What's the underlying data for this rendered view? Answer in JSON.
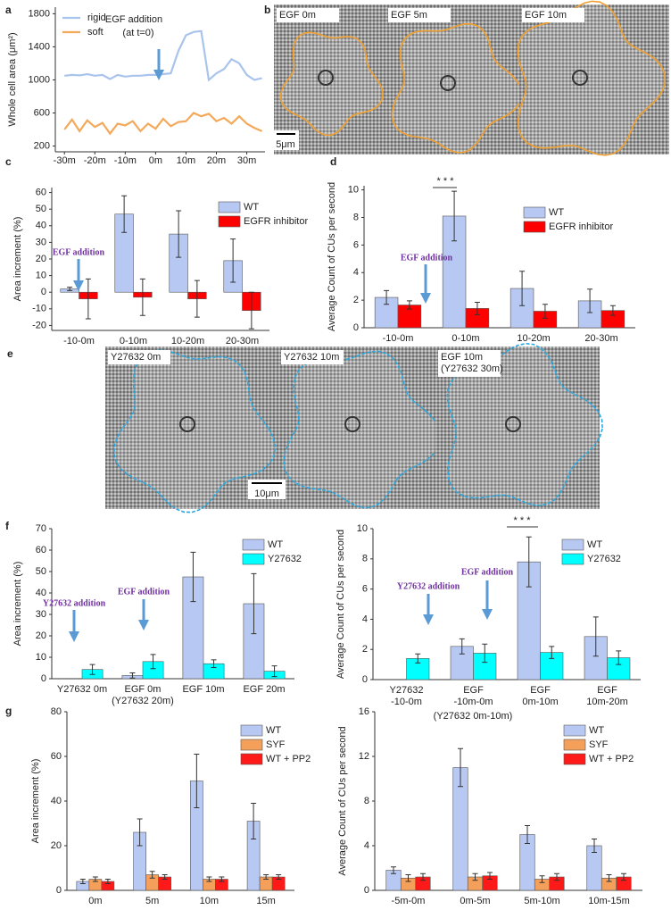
{
  "images": [
    {
      "panel": "b",
      "frames": [
        "EGF 0m",
        "EGF 5m",
        "EGF 10m"
      ],
      "scale_bar": "5μm"
    },
    {
      "panel": "e",
      "frames": [
        "Y27632 0m",
        "Y27632 10m",
        [
          "EGF 10m",
          "(Y27632 30m)"
        ]
      ],
      "scale_bar": "10μm"
    }
  ],
  "chart_data": [
    {
      "type": "line",
      "panel": "a",
      "ylabel": "Whole cell area (μm²)",
      "annotations": [
        "EGF addition",
        "(at t=0)"
      ],
      "x": [
        -30,
        -27.5,
        -25,
        -22.5,
        -20,
        -17.5,
        -15,
        -12.5,
        -10,
        -7.5,
        -5,
        -2.5,
        0,
        2.5,
        5,
        7.5,
        10,
        12.5,
        15,
        17.5,
        20,
        22.5,
        25,
        27.5,
        30,
        32.5,
        35
      ],
      "series": [
        {
          "name": "rigid",
          "color": "#a9c4ec",
          "values": [
            1050,
            1060,
            1055,
            1070,
            1050,
            1060,
            1010,
            1060,
            1040,
            1050,
            1050,
            1060,
            1060,
            1070,
            1080,
            1350,
            1540,
            1580,
            1590,
            1000,
            1080,
            1130,
            1250,
            1200,
            1060,
            1000,
            1020
          ]
        },
        {
          "name": "soft",
          "color": "#f4a95a",
          "values": [
            400,
            520,
            380,
            510,
            430,
            480,
            350,
            470,
            450,
            500,
            380,
            470,
            410,
            530,
            440,
            490,
            500,
            600,
            560,
            590,
            500,
            540,
            470,
            560,
            470,
            420,
            380
          ]
        }
      ],
      "xlim": [
        -33,
        36
      ],
      "xticks": [
        {
          "value": -30,
          "label": "-30m"
        },
        {
          "value": -20,
          "label": "-20m"
        },
        {
          "value": -10,
          "label": "-10m"
        },
        {
          "value": 0,
          "label": "0m"
        },
        {
          "value": 10,
          "label": "10m"
        },
        {
          "value": 20,
          "label": "20m"
        },
        {
          "value": 30,
          "label": "30m"
        }
      ],
      "ylim": [
        130,
        1880
      ],
      "yticks": [
        200,
        600,
        1000,
        1400,
        1800
      ],
      "legend": "upper left"
    },
    {
      "type": "bar",
      "panel": "c",
      "ylabel": "Area increment (%)",
      "annotations": [
        "EGF addition"
      ],
      "categories": [
        "-10-0m",
        "0-10m",
        "10-20m",
        "20-30m"
      ],
      "series": [
        {
          "name": "WT",
          "color": "#b7c9f2",
          "values": [
            2,
            47,
            35,
            19
          ],
          "errors": [
            1,
            11,
            14,
            13
          ]
        },
        {
          "name": "EGFR inhibitor",
          "color": "#ff0000",
          "values": [
            -4,
            -3,
            -4,
            -11
          ],
          "errors": [
            12,
            11,
            11,
            11
          ]
        }
      ],
      "ylim": [
        -23,
        63
      ],
      "yticks": [
        -20,
        -10,
        0,
        10,
        20,
        30,
        40,
        50,
        60
      ],
      "legend": "upper right"
    },
    {
      "type": "bar",
      "panel": "d",
      "ylabel": "Average Count of CUs per second",
      "annotations": [
        "EGF addition",
        "* * *"
      ],
      "categories": [
        "-10-0m",
        "0-10m",
        "10-20m",
        "20-30m"
      ],
      "series": [
        {
          "name": "WT",
          "color": "#b7c9f2",
          "values": [
            2.2,
            8.1,
            2.85,
            1.95
          ],
          "errors": [
            0.5,
            1.8,
            1.25,
            0.85
          ]
        },
        {
          "name": "EGFR inhibitor",
          "color": "#ff0000",
          "values": [
            1.65,
            1.4,
            1.2,
            1.25
          ],
          "errors": [
            0.3,
            0.45,
            0.5,
            0.35
          ]
        }
      ],
      "ylim": [
        0,
        10.3
      ],
      "yticks": [
        0,
        2,
        4,
        6,
        8,
        10
      ],
      "legend": "upper right"
    },
    {
      "type": "bar",
      "panel": "f",
      "ylabel": "Area increment (%)",
      "annotations": [
        "Y27632 addition",
        "EGF addition"
      ],
      "categories": [
        [
          "Y27632 0m"
        ],
        [
          "EGF 0m",
          "(Y27632 20m)"
        ],
        [
          "EGF 10m"
        ],
        [
          "EGF 20m"
        ]
      ],
      "series": [
        {
          "name": "WT",
          "color": "#b7c9f2",
          "values": [
            null,
            1.5,
            47.5,
            35
          ],
          "errors": [
            null,
            1.2,
            11.5,
            14
          ]
        },
        {
          "name": "Y27632",
          "color": "#00ffff",
          "values": [
            4.3,
            8,
            7,
            3.5
          ],
          "errors": [
            2.3,
            3.3,
            1.8,
            2.5
          ]
        }
      ],
      "ylim": [
        0,
        70
      ],
      "yticks": [
        0,
        10,
        20,
        30,
        40,
        50,
        60,
        70
      ],
      "legend": "upper right"
    },
    {
      "type": "bar",
      "ylabel": "Average Count of CUs per second",
      "annotations": [
        "Y27632 addition",
        "EGF addition",
        "* * *",
        "(Y27632 0m-10m)"
      ],
      "categories": [
        [
          "Y27632",
          "-10-0m"
        ],
        [
          "EGF",
          "-10m-0m"
        ],
        [
          "EGF",
          "0m-10m"
        ],
        [
          "EGF",
          "10m-20m"
        ]
      ],
      "series": [
        {
          "name": "WT",
          "color": "#b7c9f2",
          "values": [
            null,
            2.2,
            7.8,
            2.85
          ],
          "errors": [
            null,
            0.5,
            1.65,
            1.3
          ]
        },
        {
          "name": "Y27632",
          "color": "#00ffff",
          "values": [
            1.4,
            1.75,
            1.8,
            1.45
          ],
          "errors": [
            0.3,
            0.6,
            0.4,
            0.45
          ]
        }
      ],
      "ylim": [
        0,
        10
      ],
      "yticks": [
        0,
        2,
        4,
        6,
        8,
        10
      ],
      "legend": "upper right"
    },
    {
      "type": "bar",
      "panel": "g",
      "ylabel": "Area increment (%)",
      "categories": [
        "0m",
        "5m",
        "10m",
        "15m"
      ],
      "series": [
        {
          "name": "WT",
          "color": "#b7c9f2",
          "values": [
            4,
            26,
            49,
            31
          ],
          "errors": [
            1,
            6,
            12,
            8
          ]
        },
        {
          "name": "SYF",
          "color": "#f5a05a",
          "values": [
            5,
            7,
            5,
            6
          ],
          "errors": [
            1,
            1.5,
            1,
            1
          ]
        },
        {
          "name": "WT + PP2",
          "color": "#ff1a1a",
          "values": [
            4,
            6,
            5,
            6
          ],
          "errors": [
            1,
            1,
            1,
            1
          ]
        }
      ],
      "ylim": [
        0,
        80
      ],
      "yticks": [
        0,
        20,
        40,
        60,
        80
      ],
      "legend": "upper right"
    },
    {
      "type": "bar",
      "ylabel": "Average Count of CUs per second",
      "categories": [
        "-5m-0m",
        "0m-5m",
        "5m-10m",
        "10m-15m"
      ],
      "series": [
        {
          "name": "WT",
          "color": "#b7c9f2",
          "values": [
            1.8,
            11,
            5,
            4
          ],
          "errors": [
            0.3,
            1.7,
            0.8,
            0.6
          ]
        },
        {
          "name": "SYF",
          "color": "#f5a05a",
          "values": [
            1.1,
            1.2,
            1.0,
            1.1
          ],
          "errors": [
            0.3,
            0.3,
            0.3,
            0.3
          ]
        },
        {
          "name": "WT + PP2",
          "color": "#ff1a1a",
          "values": [
            1.2,
            1.3,
            1.2,
            1.2
          ],
          "errors": [
            0.3,
            0.3,
            0.3,
            0.3
          ]
        }
      ],
      "ylim": [
        0,
        16
      ],
      "yticks": [
        0,
        4,
        8,
        12,
        16
      ],
      "legend": "upper right"
    }
  ]
}
